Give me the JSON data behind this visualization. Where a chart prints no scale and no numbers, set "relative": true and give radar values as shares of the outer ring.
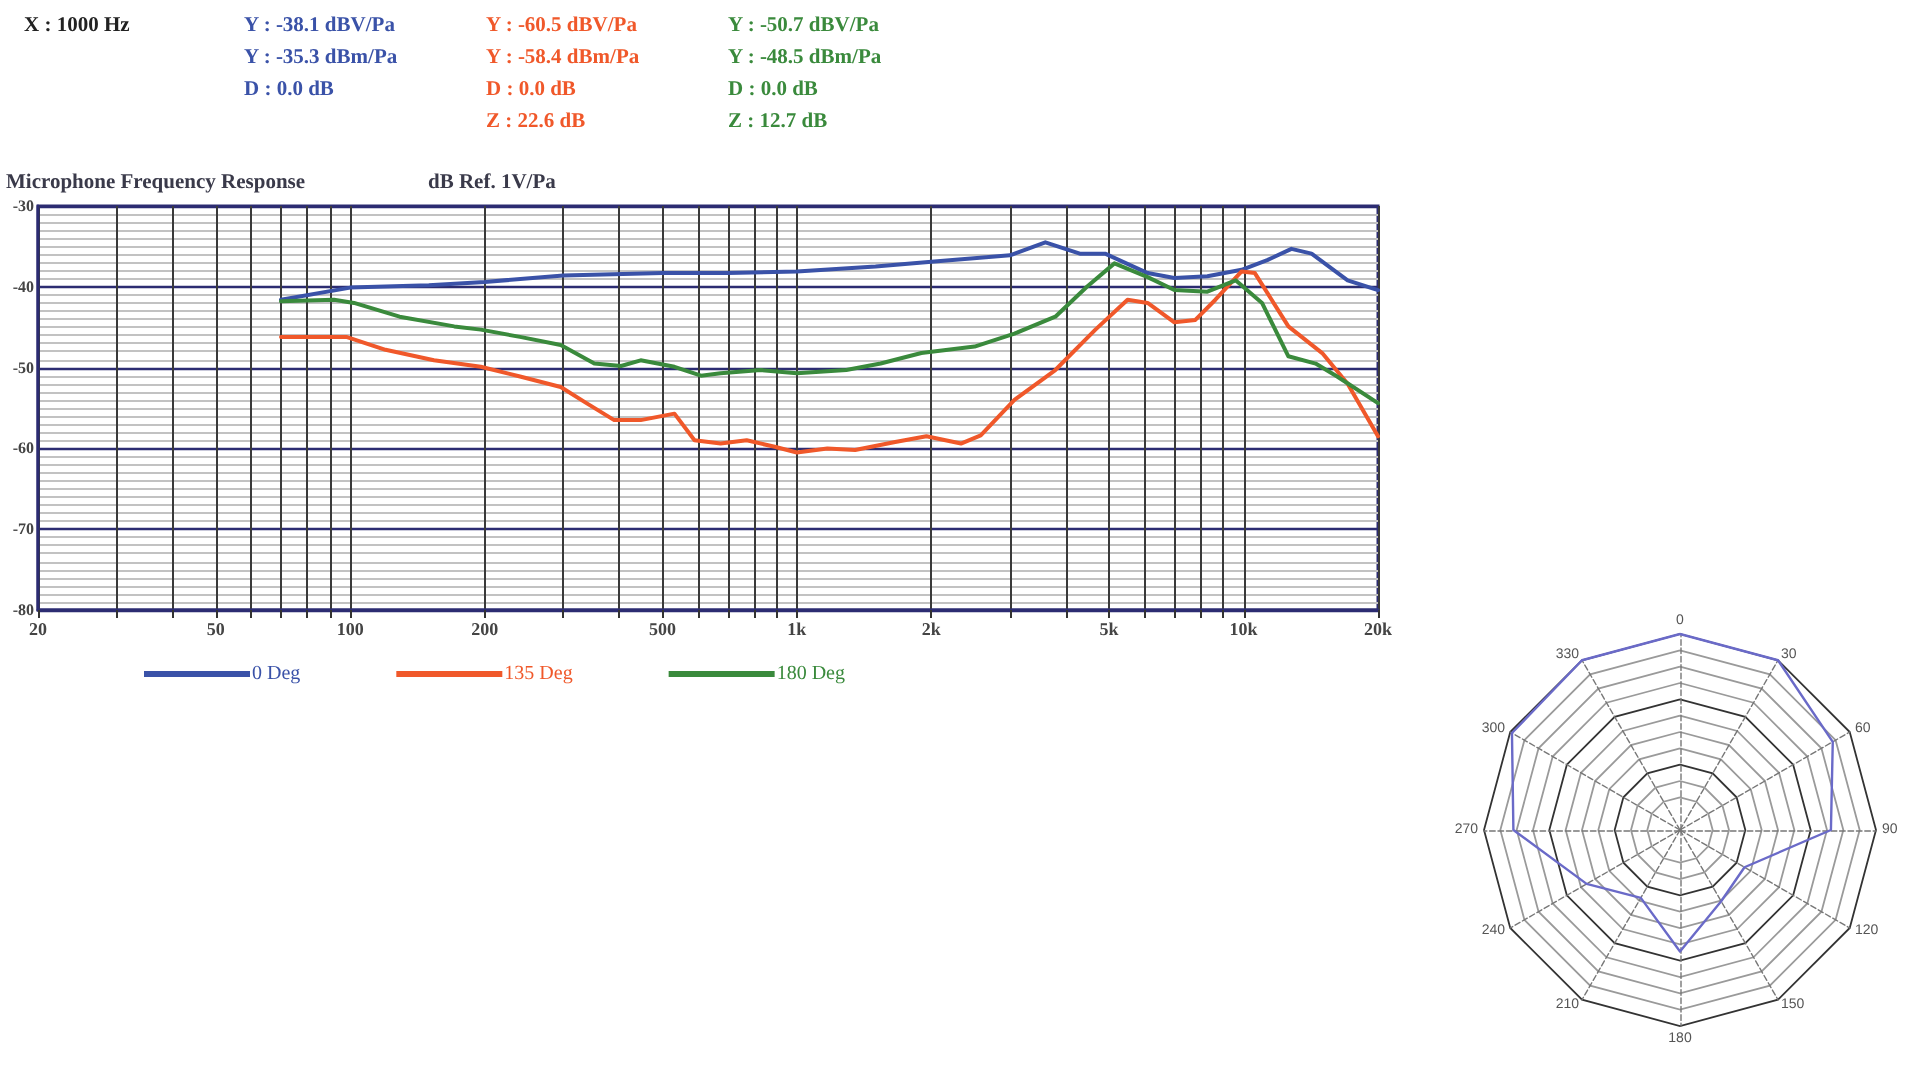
{
  "chart_data": [
    {
      "type": "line",
      "title": "Microphone Frequency Response",
      "subtitle": "dB Ref. 1V/Pa",
      "annotations": [
        "X : 1000 Hz",
        "Y : -38.1 dBV/Pa\nY : -35.3 dBm/Pa\nD : 0.0 dB",
        "Y : -60.5 dBV/Pa\nY : -58.4 dBm/Pa\nD : 0.0 dB\nZ : 22.6 dB",
        "Y : -50.7 dBV/Pa\nY : -48.5 dBm/Pa\nD : 0.0 dB\nZ : 12.7 dB"
      ],
      "series": [
        {
          "name": "0 Deg",
          "color": "#3a52a8",
          "x": [
            70,
            100,
            150,
            200,
            300,
            500,
            700,
            1000,
            1500,
            2000,
            3000,
            3600,
            4300,
            4900,
            6100,
            7000,
            8300,
            9900,
            11300,
            12800,
            14200,
            17100,
            20000
          ],
          "values": [
            -41.6,
            -40.1,
            -39.8,
            -39.4,
            -38.6,
            -38.3,
            -38.3,
            -38.1,
            -37.5,
            -36.9,
            -36.1,
            -34.5,
            -35.9,
            -35.9,
            -38.3,
            -38.9,
            -38.7,
            -37.9,
            -36.7,
            -35.3,
            -35.9,
            -39.2,
            -40.4
          ]
        },
        {
          "name": "135 Deg",
          "color": "#f0582a",
          "x": [
            70,
            98,
            120,
            154,
            196,
            240,
            296,
            338,
            390,
            447,
            532,
            590,
            675,
            772,
            892,
            1000,
            1170,
            1350,
            1660,
            1950,
            2330,
            2580,
            3070,
            3790,
            4660,
            5500,
            6100,
            7000,
            7800,
            8650,
            9900,
            10600,
            12600,
            15000,
            17100,
            20000
          ],
          "values": [
            -46.2,
            -46.2,
            -47.8,
            -49.1,
            -49.9,
            -51.1,
            -52.4,
            -54.4,
            -56.5,
            -56.5,
            -55.7,
            -59.0,
            -59.4,
            -59.0,
            -59.8,
            -60.5,
            -60.0,
            -60.2,
            -59.2,
            -58.5,
            -59.4,
            -58.4,
            -54.0,
            -50.3,
            -45.3,
            -41.6,
            -42.0,
            -44.4,
            -44.1,
            -41.6,
            -38.1,
            -38.3,
            -44.9,
            -48.2,
            -52.0,
            -58.5
          ]
        },
        {
          "name": "180 Deg",
          "color": "#3a8a3c",
          "x": [
            70,
            92,
            102,
            129,
            171,
            196,
            240,
            296,
            352,
            404,
            447,
            532,
            610,
            675,
            830,
            1000,
            1290,
            1540,
            1900,
            2500,
            3070,
            3790,
            4460,
            5140,
            6100,
            7000,
            8300,
            9600,
            11000,
            12600,
            14500,
            16200,
            20000
          ],
          "values": [
            -41.8,
            -41.6,
            -42.0,
            -43.7,
            -44.9,
            -45.3,
            -46.2,
            -47.2,
            -49.5,
            -49.8,
            -49.1,
            -49.9,
            -51.0,
            -50.7,
            -50.3,
            -50.7,
            -50.3,
            -49.5,
            -48.2,
            -47.4,
            -45.8,
            -43.7,
            -40.0,
            -37.1,
            -38.8,
            -40.4,
            -40.6,
            -39.2,
            -42.0,
            -48.6,
            -49.5,
            -51.1,
            -54.4
          ]
        }
      ],
      "log": "x",
      "xlim": [
        20,
        20000
      ],
      "xticks": [
        20,
        {
          "value": 30,
          "label": null
        },
        {
          "value": 40,
          "label": null
        },
        50,
        {
          "value": 60,
          "label": null
        },
        {
          "value": 70,
          "label": null
        },
        {
          "value": 80,
          "label": null
        },
        {
          "value": 90,
          "label": null
        },
        100,
        200,
        {
          "value": 300,
          "label": null
        },
        {
          "value": 400,
          "label": null
        },
        500,
        {
          "value": 600,
          "label": null
        },
        {
          "value": 700,
          "label": null
        },
        {
          "value": 800,
          "label": null
        },
        {
          "value": 900,
          "label": null
        },
        {
          "value": 1000,
          "label": "1k"
        },
        {
          "value": 2000,
          "label": "2k"
        },
        {
          "value": 3000,
          "label": null
        },
        {
          "value": 4000,
          "label": null
        },
        {
          "value": 5000,
          "label": "5k"
        },
        {
          "value": 6000,
          "label": null
        },
        {
          "value": 7000,
          "label": null
        },
        {
          "value": 8000,
          "label": null
        },
        {
          "value": 9000,
          "label": null
        },
        {
          "value": 10000,
          "label": "10k"
        },
        {
          "value": 20000,
          "label": "20k"
        }
      ],
      "ylim": [
        -80,
        -30
      ],
      "yticks": [
        -80,
        -70,
        -60,
        -50,
        -40,
        -30
      ],
      "grid": true,
      "legend": "bottom"
    },
    {
      "type": "radar",
      "relative": true,
      "grid": true,
      "categories": [
        "0",
        "30",
        "60",
        "90",
        "120",
        "150",
        "180",
        "210",
        "240",
        "270",
        "300",
        "330"
      ],
      "series": [
        {
          "color": "#6a6ac8",
          "values": [
            1.0,
            1.0,
            0.9,
            0.77,
            0.38,
            0.42,
            0.62,
            0.4,
            0.55,
            0.85,
            0.99,
            1.0
          ]
        }
      ]
    }
  ]
}
